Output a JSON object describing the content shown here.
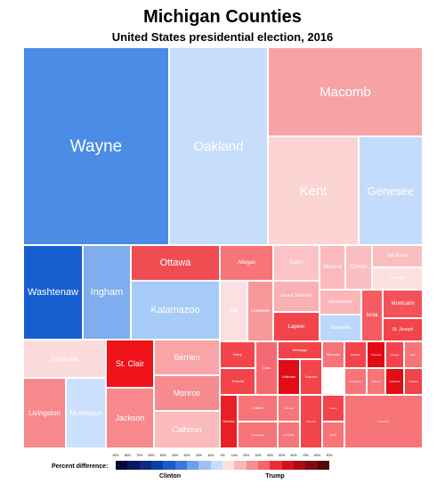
{
  "chart_data": {
    "type": "treemap",
    "title": "Michigan Counties",
    "subtitle": "United States presidential election, 2016",
    "items": [
      {
        "name": "Wayne",
        "color": "#4a8ce6",
        "label_size": 19,
        "show_label": true
      },
      {
        "name": "Oakland",
        "color": "#c6defc",
        "label_size": 15,
        "show_label": true
      },
      {
        "name": "Macomb",
        "color": "#f7a3a6",
        "label_size": 15,
        "show_label": true
      },
      {
        "name": "Kent",
        "color": "#fcd4d4",
        "label_size": 15,
        "show_label": true
      },
      {
        "name": "Genesee",
        "color": "#c4dcfb",
        "label_size": 13,
        "show_label": true
      },
      {
        "name": "Washtenaw",
        "color": "#175fd0",
        "label_size": 11,
        "show_label": true
      },
      {
        "name": "Ingham",
        "color": "#7fadef",
        "label_size": 11,
        "show_label": true
      },
      {
        "name": "Ottawa",
        "color": "#ef4d52",
        "label_size": 11,
        "show_label": true
      },
      {
        "name": "Kalamazoo",
        "color": "#a6cbf6",
        "label_size": 11,
        "show_label": true
      },
      {
        "name": "Saginaw",
        "color": "#fcdbdc",
        "label_size": 8,
        "show_label": true
      },
      {
        "name": "Livingston",
        "color": "#f7888c",
        "label_size": 8,
        "show_label": true
      },
      {
        "name": "Muskegon",
        "color": "#cae0fc",
        "label_size": 8,
        "show_label": true
      },
      {
        "name": "St. Clair",
        "color": "#f01219",
        "label_size": 9,
        "show_label": true
      },
      {
        "name": "Jackson",
        "color": "#f7888c",
        "label_size": 9,
        "show_label": true
      },
      {
        "name": "Berrien",
        "color": "#f9a4a7",
        "label_size": 9,
        "show_label": true
      },
      {
        "name": "Monroe",
        "color": "#f78a8f",
        "label_size": 9,
        "show_label": true
      },
      {
        "name": "Calhoun",
        "color": "#fbbabc",
        "label_size": 9,
        "show_label": true
      },
      {
        "name": "Allegan",
        "color": "#f77479",
        "label_size": 6,
        "show_label": true
      },
      {
        "name": "Bay",
        "color": "#fce0e1",
        "label_size": 6,
        "show_label": true
      },
      {
        "name": "Midland",
        "color": "#fbb9bb",
        "label_size": 6,
        "show_label": true
      },
      {
        "name": "Clinton",
        "color": "#fbbfc1",
        "label_size": 6,
        "show_label": true
      },
      {
        "name": "Van Buren",
        "color": "#fbbec0",
        "label_size": 5,
        "show_label": true
      },
      {
        "name": "Isabella",
        "color": "#fde0e1",
        "label_size": 5,
        "show_label": true
      },
      {
        "name": "Eaton",
        "color": "#fbc3c5",
        "label_size": 6,
        "show_label": true
      },
      {
        "name": "Lenawee",
        "color": "#f9989b",
        "label_size": 5,
        "show_label": true
      },
      {
        "name": "Grand Traverse",
        "color": "#fbb0b3",
        "label_size": 5,
        "show_label": true
      },
      {
        "name": "Shiawassee",
        "color": "#fbb6b8",
        "label_size": 5,
        "show_label": true
      },
      {
        "name": "Ionia",
        "color": "#f55c62",
        "label_size": 6,
        "show_label": true
      },
      {
        "name": "Montcalm",
        "color": "#f4525a",
        "label_size": 6,
        "show_label": true
      },
      {
        "name": "Lapeer",
        "color": "#f3444b",
        "label_size": 6,
        "show_label": true
      },
      {
        "name": "Marquette",
        "color": "#bcd7fb",
        "label_size": 5,
        "show_label": true
      },
      {
        "name": "St. Joseph",
        "color": "#f3444b",
        "label_size": 5,
        "show_label": true
      },
      {
        "name": "Barry",
        "color": "#f3444b",
        "label_size": 4,
        "show_label": true
      },
      {
        "name": "Tuscola",
        "color": "#f3444b",
        "label_size": 4,
        "show_label": true
      },
      {
        "name": "Cass",
        "color": "#f56a70",
        "label_size": 4,
        "show_label": true
      },
      {
        "name": "Newaygo",
        "color": "#f3444b",
        "label_size": 4,
        "show_label": true
      },
      {
        "name": "Hillsdale",
        "color": "#e30b14",
        "label_size": 4,
        "show_label": true
      },
      {
        "name": "Branch",
        "color": "#f3444b",
        "label_size": 4,
        "show_label": true
      },
      {
        "name": "Mecosta",
        "color": "#f77479",
        "label_size": 4,
        "show_label": true
      },
      {
        "name": "Sanilac",
        "color": "#ea1f26",
        "label_size": 4,
        "show_label": true
      },
      {
        "name": "Gratiot",
        "color": "#f77479",
        "label_size": 4,
        "show_label": true
      },
      {
        "name": "Cheboygan",
        "color": "#f77479",
        "label_size": 3,
        "show_label": true
      },
      {
        "name": "Emmet",
        "color": "#f77479",
        "label_size": 3,
        "show_label": true
      },
      {
        "name": "Houghton",
        "color": "#f77479",
        "label_size": 3,
        "show_label": true
      },
      {
        "name": "Wexford",
        "color": "#f3444b",
        "label_size": 3,
        "show_label": true
      },
      {
        "name": "Huron",
        "color": "#f3444b",
        "label_size": 3,
        "show_label": true
      },
      {
        "name": "Delta",
        "color": "#f77479",
        "label_size": 3,
        "show_label": true
      },
      {
        "name": "Charlevoix",
        "color": "#f77479",
        "label_size": 3,
        "show_label": true
      },
      {
        "name": "Gladwin",
        "color": "#f3444b",
        "label_size": 3,
        "show_label": true
      },
      {
        "name": "Osceola",
        "color": "#e30b14",
        "label_size": 3,
        "show_label": true
      },
      {
        "name": "Otsego",
        "color": "#f3444b",
        "label_size": 3,
        "show_label": true
      },
      {
        "name": "Iosco",
        "color": "#f77479",
        "label_size": 3,
        "show_label": true
      },
      {
        "name": "Alpena",
        "color": "#f77479",
        "label_size": 3,
        "show_label": true
      },
      {
        "name": "Kalkaska",
        "color": "#e30b14",
        "label_size": 3,
        "show_label": true
      },
      {
        "name": "Oceana",
        "color": "#f3444b",
        "label_size": 3,
        "show_label": true
      },
      {
        "name": "Crawford",
        "color": "#f77479",
        "label_size": 3,
        "show_label": true
      }
    ],
    "legend": {
      "title": "Percent difference:",
      "left_label": "Clinton",
      "right_label": "Trump",
      "ticks": [
        "90%",
        "80%",
        "70%",
        "60%",
        "50%",
        "40%",
        "30%",
        "20%",
        "10%",
        "0%",
        "10%",
        "20%",
        "30%",
        "40%",
        "50%",
        "60%",
        "70%",
        "80%",
        "90%"
      ],
      "colors": [
        "#06083a",
        "#0a1a5c",
        "#0c2a80",
        "#0d3ea4",
        "#1c5bcf",
        "#3a78e0",
        "#6d9eec",
        "#9ec0f4",
        "#c9ddfb",
        "#fde0e1",
        "#fbb7b9",
        "#f78e92",
        "#f3666c",
        "#ee2c33",
        "#d2121a",
        "#a90e14",
        "#7f0a0f",
        "#56060a"
      ]
    }
  }
}
